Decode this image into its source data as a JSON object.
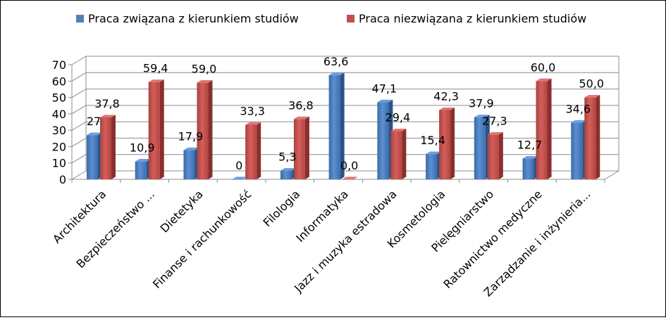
{
  "chart_data": {
    "type": "bar",
    "title": "",
    "xlabel": "",
    "ylabel": "",
    "ylim": [
      0,
      70
    ],
    "yticks": [
      "0",
      "10",
      "20",
      "30",
      "40",
      "50",
      "60",
      "70"
    ],
    "grid": true,
    "legend_position": "top",
    "categories": [
      "Architektura",
      "Bezpieczeństwo ...",
      "Dietetyka",
      "Finanse i rachunkowość",
      "Filologia",
      "Informatyka",
      "Jazz i muzyka estradowa",
      "Kosmetologia",
      "Pielęgniarstwo",
      "Ratownictwo medyczne",
      "Zarządzanie i inżynieria..."
    ],
    "series": [
      {
        "name": "Praca związana z kierunkiem studiów",
        "color": "#4F81BD",
        "values": [
          27,
          10.9,
          17.9,
          0,
          5.3,
          63.6,
          47.1,
          15.4,
          37.9,
          12.7,
          34.6
        ],
        "labels": [
          "27",
          "10,9",
          "17,9",
          "0",
          "5,3",
          "63,6",
          "47,1",
          "15,4",
          "37,9",
          "12,7",
          "34,6"
        ]
      },
      {
        "name": "Praca niezwiązana z kierunkiem studiów",
        "color": "#C0504D",
        "values": [
          37.8,
          59.4,
          59.0,
          33.3,
          36.8,
          0.0,
          29.4,
          42.3,
          27.3,
          60.0,
          50.0
        ],
        "labels": [
          "37,8",
          "59,4",
          "59,0",
          "33,3",
          "36,8",
          "0,0",
          "29,4",
          "42,3",
          "27,3",
          "60,0",
          "50,0"
        ]
      }
    ]
  }
}
